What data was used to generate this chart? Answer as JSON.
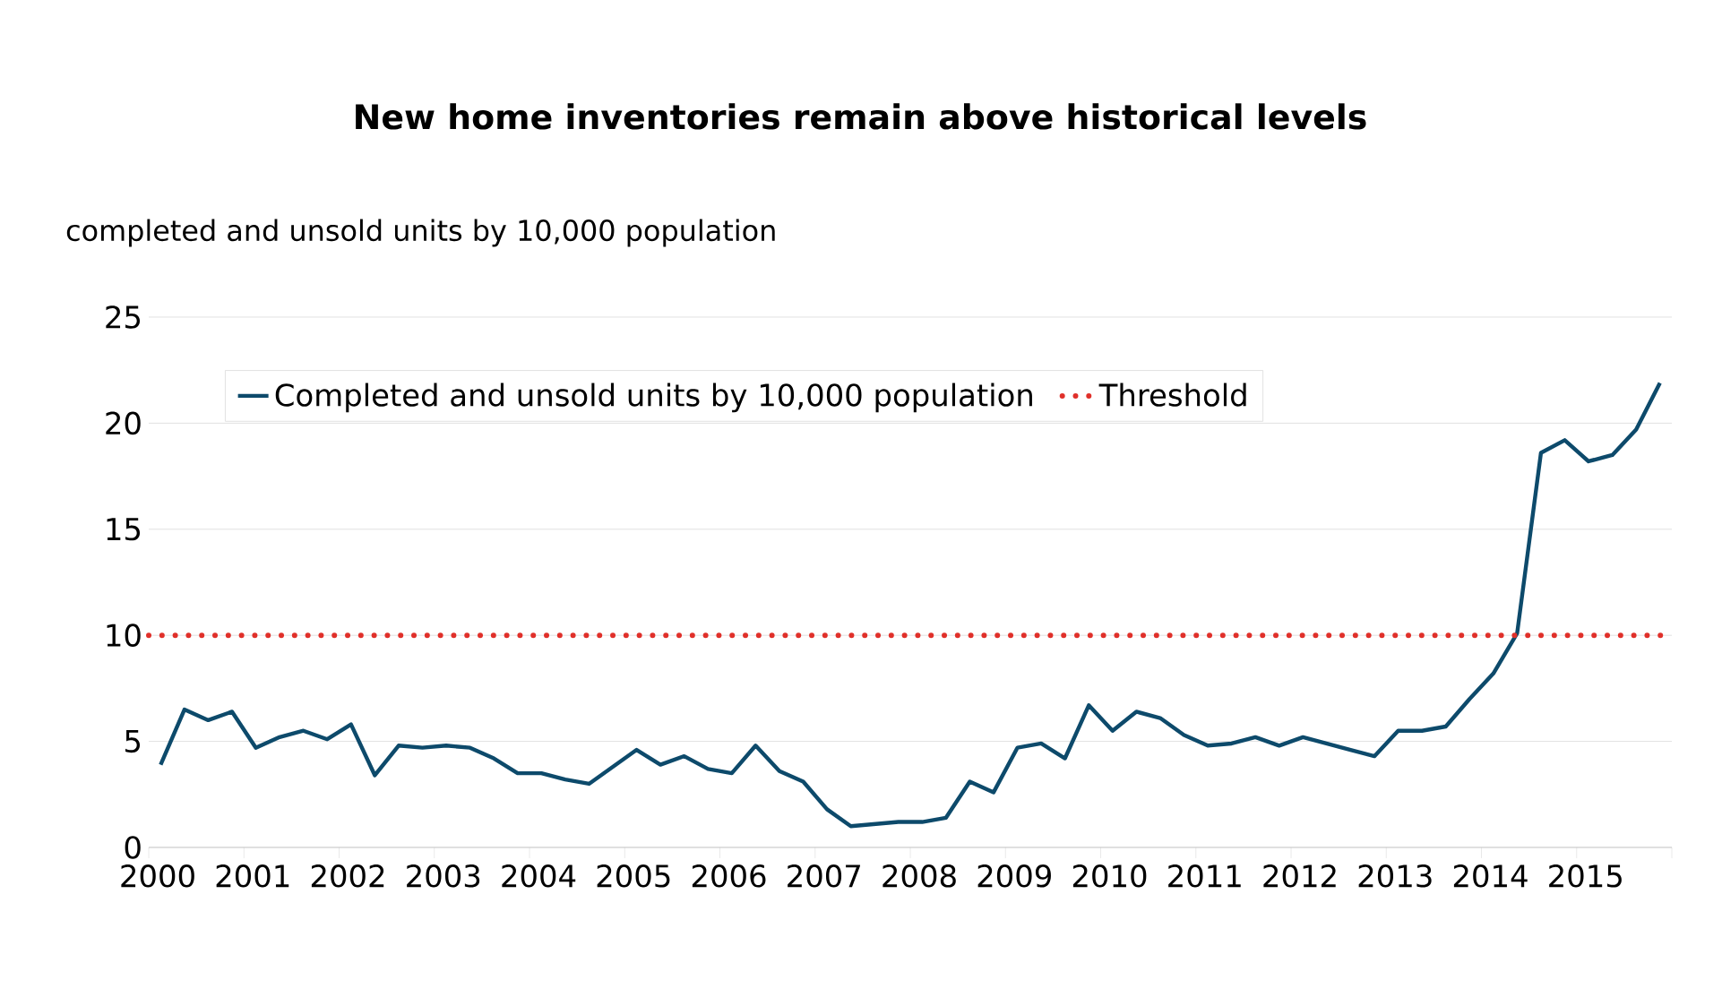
{
  "chart_data": {
    "type": "line",
    "title": "New home inventories remain above historical levels",
    "ylabel": "completed and unsold units by 10,000 population",
    "x": [
      2000.125,
      2000.375,
      2000.625,
      2000.875,
      2001.125,
      2001.375,
      2001.625,
      2001.875,
      2002.125,
      2002.375,
      2002.625,
      2002.875,
      2003.125,
      2003.375,
      2003.625,
      2003.875,
      2004.125,
      2004.375,
      2004.625,
      2004.875,
      2005.125,
      2005.375,
      2005.625,
      2005.875,
      2006.125,
      2006.375,
      2006.625,
      2006.875,
      2007.125,
      2007.375,
      2007.625,
      2007.875,
      2008.125,
      2008.375,
      2008.625,
      2008.875,
      2009.125,
      2009.375,
      2009.625,
      2009.875,
      2010.125,
      2010.375,
      2010.625,
      2010.875,
      2011.125,
      2011.375,
      2011.625,
      2011.875,
      2012.125,
      2012.375,
      2012.625,
      2012.875,
      2013.125,
      2013.375,
      2013.625,
      2013.875,
      2014.125,
      2014.375,
      2014.625,
      2014.875,
      2015.125,
      2015.375,
      2015.625,
      2015.875
    ],
    "series": [
      {
        "name": "Completed and unsold units by 10,000 population",
        "color": "#0d4a6b",
        "values": [
          3.9,
          6.5,
          6.0,
          6.4,
          4.7,
          5.2,
          5.5,
          5.1,
          5.8,
          3.4,
          4.8,
          4.7,
          4.8,
          4.7,
          4.2,
          3.5,
          3.5,
          3.2,
          3.0,
          3.8,
          4.6,
          3.9,
          4.3,
          3.7,
          3.5,
          4.8,
          3.6,
          3.1,
          1.8,
          1.0,
          1.1,
          1.2,
          1.2,
          1.4,
          3.1,
          2.6,
          4.7,
          4.9,
          4.2,
          6.7,
          5.5,
          6.4,
          6.1,
          5.3,
          4.8,
          4.9,
          5.2,
          4.8,
          5.2,
          4.9,
          4.6,
          4.3,
          5.5,
          5.5,
          5.7,
          7.0,
          8.2,
          10.1,
          18.6,
          19.2,
          18.2,
          18.5,
          19.7,
          21.9
        ]
      }
    ],
    "xlim": [
      2000,
      2016
    ],
    "xticks": [
      2000,
      2001,
      2002,
      2003,
      2004,
      2005,
      2006,
      2007,
      2008,
      2009,
      2010,
      2011,
      2012,
      2013,
      2014,
      2015,
      {
        "value": 2016,
        "label": null
      }
    ],
    "ylim": [
      0,
      25
    ],
    "yticks": [
      0,
      5,
      10,
      15,
      20,
      25
    ],
    "ref_lines": [
      {
        "axis": "y",
        "value": 10,
        "label": "Threshold",
        "color": "#e0302a",
        "line_style": "dotted"
      }
    ],
    "grid": "y",
    "legend": "top left",
    "marker": "none",
    "line_style": "solid"
  }
}
